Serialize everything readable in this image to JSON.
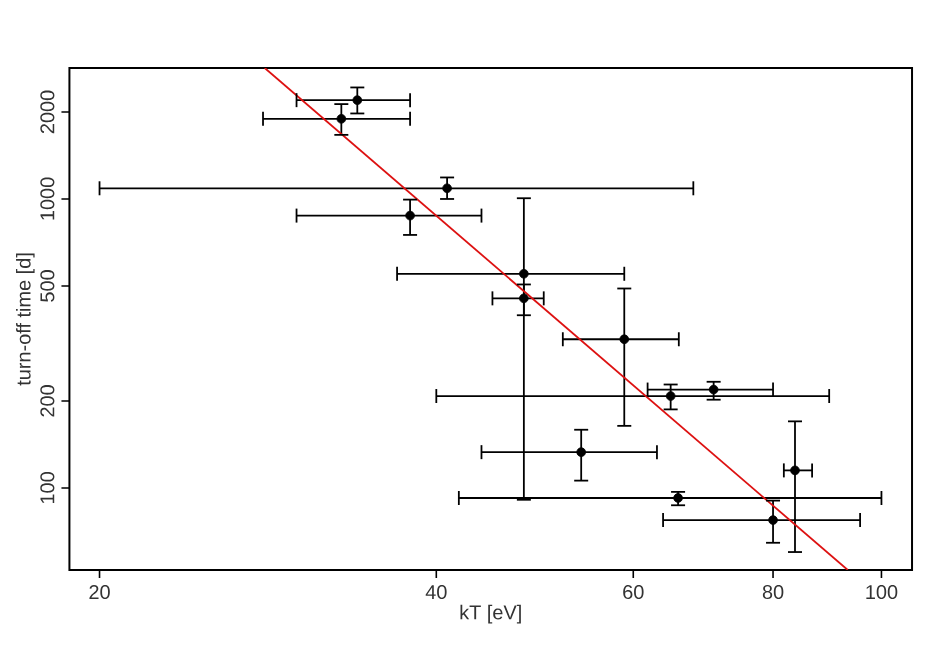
{
  "chart_data": {
    "type": "scatter",
    "xlabel": "kT [eV]",
    "ylabel": "turn-off time [d]",
    "log": "xy",
    "xlim": [
      18.8,
      106.5
    ],
    "ylim": [
      52,
      2840
    ],
    "xticks": [
      20,
      40,
      60,
      80,
      100
    ],
    "yticks": [
      100,
      200,
      500,
      1000,
      2000
    ],
    "series": [
      {
        "marker": "circle",
        "color": "#000000",
        "x": [
          34.0,
          32.9,
          40.9,
          37.9,
          47.9,
          47.9,
          58.9,
          64.8,
          70.8,
          53.9,
          65.8,
          80.0,
          83.7
        ],
        "values": [
          2198,
          1894,
          1089,
          876,
          551,
          453,
          327,
          208,
          219,
          133,
          92.3,
          77.4,
          115
        ],
        "errors": [
          [
            1977,
            2432
          ],
          [
            1667,
            2130
          ],
          [
            1000,
            1187
          ],
          [
            751,
            995
          ],
          [
            91,
            1006
          ],
          [
            396,
            506
          ],
          [
            164,
            490
          ],
          [
            187,
            228
          ],
          [
            202,
            233
          ],
          [
            106,
            159
          ],
          [
            87.1,
            96.9
          ],
          [
            64.6,
            90.4
          ],
          [
            60,
            170
          ]
        ],
        "xerrors": [
          [
            30.0,
            37.9
          ],
          [
            28.0,
            37.9
          ],
          [
            20.0,
            67.9
          ],
          [
            30.0,
            43.9
          ],
          [
            36.9,
            58.9
          ],
          [
            44.9,
            49.9
          ],
          [
            51.9,
            65.9
          ],
          [
            40.0,
            89.8
          ],
          [
            61.8,
            80.0
          ],
          [
            43.9,
            63.0
          ],
          [
            41.9,
            100
          ],
          [
            63.8,
            95.7
          ],
          [
            81.8,
            86.7
          ]
        ]
      },
      {
        "type": "line",
        "color": "#dd1111",
        "x": [
          28.1,
          93.3
        ],
        "values": [
          2840,
          52
        ]
      }
    ]
  }
}
